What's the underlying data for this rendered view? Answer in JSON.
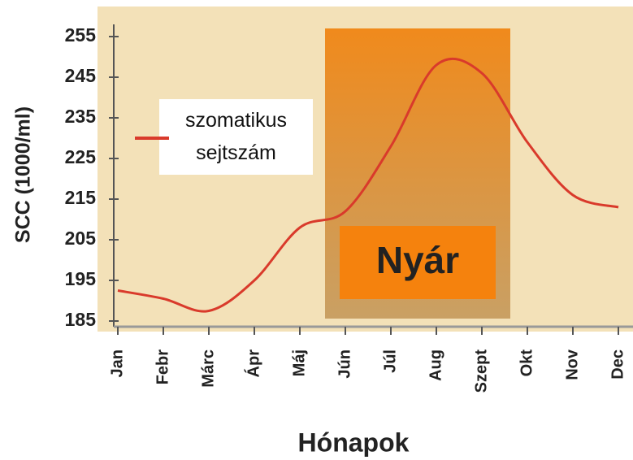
{
  "chart_data": {
    "type": "line",
    "x_label": "Hónapok",
    "y_label": "SCC (1000/ml)",
    "categories": [
      "Jan",
      "Febr",
      "Márc",
      "Ápr",
      "Máj",
      "Jún",
      "Júl",
      "Aug",
      "Szept",
      "Okt",
      "Nov",
      "Dec"
    ],
    "series": [
      {
        "name": "szomatikus sejtszám",
        "color": "#d93a2b",
        "values": [
          192.5,
          190.5,
          187.5,
          195,
          208,
          212,
          228,
          248,
          246,
          229,
          216,
          213
        ]
      }
    ],
    "annotation": "Nyár",
    "ylim": [
      185,
      255
    ],
    "yticks": [
      185,
      195,
      205,
      215,
      225,
      235,
      245,
      255
    ]
  }
}
